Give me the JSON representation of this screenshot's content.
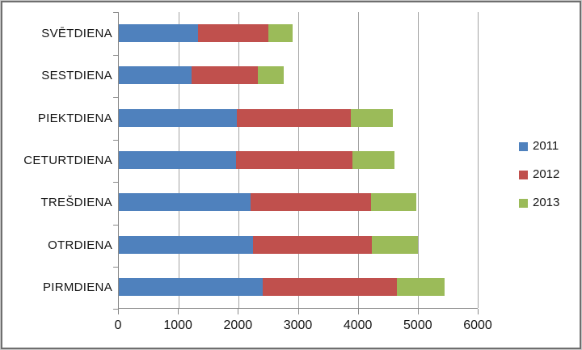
{
  "chart_data": {
    "type": "bar",
    "orientation": "horizontal",
    "stacked": true,
    "title": "",
    "xlabel": "",
    "ylabel": "",
    "categories": [
      "SVĒTDIENA",
      "SESTDIENA",
      "PIEKTDIENA",
      "CETURTDIENA",
      "TREŠDIENA",
      "OTRDIENA",
      "PIRMDIENA"
    ],
    "category_order": "top-to-bottom",
    "series": [
      {
        "name": "2011",
        "color": "#4F81BD",
        "values": [
          1330,
          1220,
          1970,
          1960,
          2200,
          2240,
          2410
        ]
      },
      {
        "name": "2012",
        "color": "#C0504D",
        "values": [
          1170,
          1110,
          1910,
          1950,
          2020,
          1990,
          2240
        ]
      },
      {
        "name": "2013",
        "color": "#9BBB59",
        "values": [
          410,
          430,
          700,
          700,
          750,
          770,
          790
        ]
      }
    ],
    "x_axis": {
      "min": 0,
      "max": 6000,
      "tick_interval": 1000,
      "ticks": [
        0,
        1000,
        2000,
        3000,
        4000,
        5000,
        6000
      ],
      "tick_labels": [
        "0",
        "1000",
        "2000",
        "3000",
        "4000",
        "5000",
        "6000"
      ]
    },
    "grid": "vertical-gridlines",
    "legend": {
      "position": "right",
      "entries": [
        "2011",
        "2012",
        "2013"
      ]
    }
  },
  "colors": {
    "series_2011": "#4F81BD",
    "series_2012": "#C0504D",
    "series_2013": "#9BBB59",
    "gridline": "#a3a3a3",
    "axis": "#8a8a8a",
    "text": "#151515",
    "background": "#ffffff",
    "outer_border": "#6f6f6f"
  }
}
